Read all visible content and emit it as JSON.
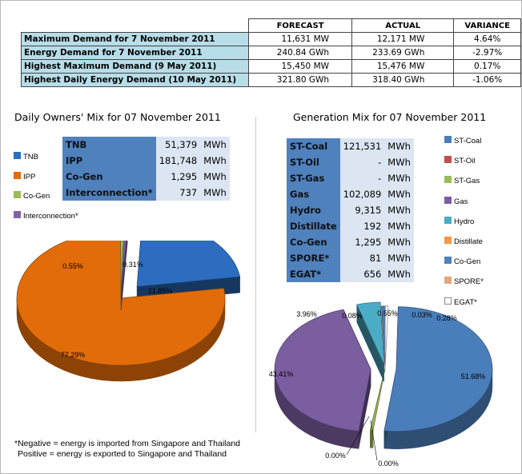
{
  "summary": {
    "headers": [
      "",
      "FORECAST",
      "ACTUAL",
      "VARIANCE"
    ],
    "rows": [
      {
        "label": "Maximum Demand for 7 November 2011",
        "forecast": "11,631  MW",
        "actual": "12,171  MW",
        "variance": "4.64%"
      },
      {
        "label": "Energy Demand for 7 November 2011",
        "forecast": "240.84  GWh",
        "actual": "233.69  GWh",
        "variance": "-2.97%"
      },
      {
        "label": "Highest Maximum Demand (9 May 2011)",
        "forecast": "15,450  MW",
        "actual": "15,476  MW",
        "variance": "0.17%"
      },
      {
        "label": "Highest Daily Energy Demand (10 May 2011)",
        "forecast": "321.80  GWh",
        "actual": "318.40  GWh",
        "variance": "-1.06%"
      }
    ]
  },
  "owners": {
    "title": "Daily Owners' Mix for 07 November 2011",
    "table": [
      {
        "name": "TNB",
        "value": "51,379",
        "unit": "MWh"
      },
      {
        "name": "IPP",
        "value": "181,748",
        "unit": "MWh"
      },
      {
        "name": "Co-Gen",
        "value": "1,295",
        "unit": "MWh"
      },
      {
        "name": "Interconnection*",
        "value": "737",
        "unit": "MWh"
      }
    ]
  },
  "generation": {
    "title": "Generation Mix for 07 November 2011",
    "table": [
      {
        "name": "ST-Coal",
        "value": "121,531",
        "unit": "MWh"
      },
      {
        "name": "ST-Oil",
        "value": "-",
        "unit": "MWh"
      },
      {
        "name": "ST-Gas",
        "value": "-",
        "unit": "MWh"
      },
      {
        "name": "Gas",
        "value": "102,089",
        "unit": "MWh"
      },
      {
        "name": "Hydro",
        "value": "9,315",
        "unit": "MWh"
      },
      {
        "name": "Distillate",
        "value": "192",
        "unit": "MWh"
      },
      {
        "name": "Co-Gen",
        "value": "1,295",
        "unit": "MWh"
      },
      {
        "name": "SPORE*",
        "value": "81",
        "unit": "MWh"
      },
      {
        "name": "EGAT*",
        "value": "656",
        "unit": "MWh"
      }
    ]
  },
  "footnote": {
    "line1": "*Negative = energy is imported from Singapore and Thailand",
    "line2": "Positive = energy is exported to Singapore and Thailand"
  },
  "chart_data": [
    {
      "type": "pie",
      "title": "",
      "legend_position": "left",
      "categories": [
        "TNB",
        "IPP",
        "Co-Gen",
        "Interconnection*"
      ],
      "values": [
        21.85,
        77.29,
        0.55,
        0.31
      ],
      "labels": [
        "21.85%",
        "77.29%",
        "0.55%",
        "0.31%"
      ],
      "colors": [
        "#2c6dc0",
        "#e36c0a",
        "#9bbb59",
        "#8064a2"
      ]
    },
    {
      "type": "pie",
      "title": "",
      "legend_position": "right",
      "categories": [
        "ST-Coal",
        "ST-Oil",
        "ST-Gas",
        "Gas",
        "Hydro",
        "Distillate",
        "Co-Gen",
        "SPORE*",
        "EGAT*"
      ],
      "values": [
        51.68,
        0.0,
        0.0,
        43.41,
        3.96,
        0.08,
        0.55,
        0.03,
        0.28
      ],
      "labels": [
        "51.68%",
        "0.00%",
        "0.00%",
        "43.41%",
        "3.96%",
        "0.08%",
        "0.55%",
        "0.03%",
        "0.28%"
      ],
      "colors": [
        "#4a7ebb",
        "#c0504d",
        "#9bbb59",
        "#7a5ea0",
        "#4bacc6",
        "#f79646",
        "#4f81bd",
        "#e4a67c",
        "#ffffff"
      ]
    }
  ]
}
